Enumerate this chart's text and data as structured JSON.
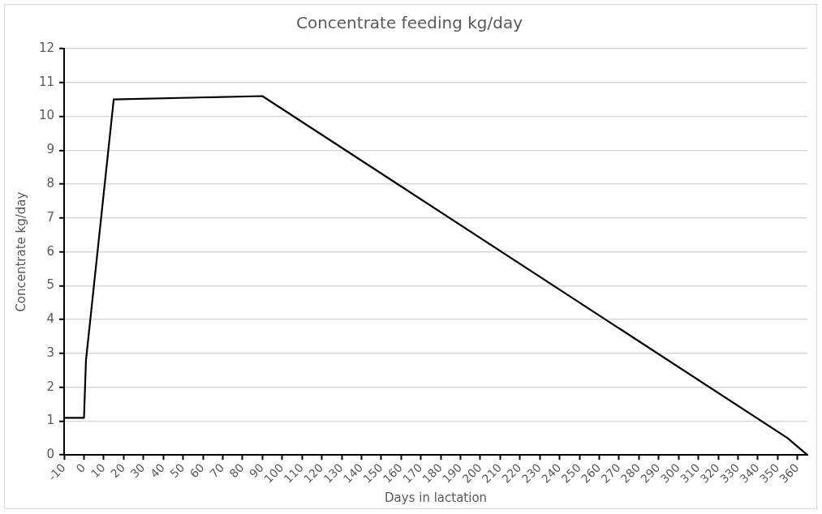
{
  "chart_data": {
    "type": "line",
    "title": "Concentrate feeding kg/day",
    "xlabel": "Days in lactation",
    "ylabel": "Concentrate kg/day",
    "x": [
      -10,
      0,
      1,
      15,
      90,
      355,
      365
    ],
    "series": [
      {
        "color": "#000000",
        "values": [
          1.1,
          1.1,
          2.8,
          10.5,
          10.6,
          0.5,
          0
        ]
      }
    ],
    "xlim": [
      -10,
      365
    ],
    "xticks": [
      -10,
      0,
      10,
      20,
      30,
      40,
      50,
      60,
      70,
      80,
      90,
      100,
      110,
      120,
      130,
      140,
      150,
      160,
      170,
      180,
      190,
      200,
      210,
      220,
      230,
      240,
      250,
      260,
      270,
      280,
      290,
      300,
      310,
      320,
      330,
      340,
      350,
      360
    ],
    "ylim": [
      0,
      12
    ],
    "yticks": [
      0,
      1,
      2,
      3,
      4,
      5,
      6,
      7,
      8,
      9,
      10,
      11,
      12
    ],
    "grid": "y",
    "legend": false,
    "marker": "none",
    "line_style": "solid"
  }
}
